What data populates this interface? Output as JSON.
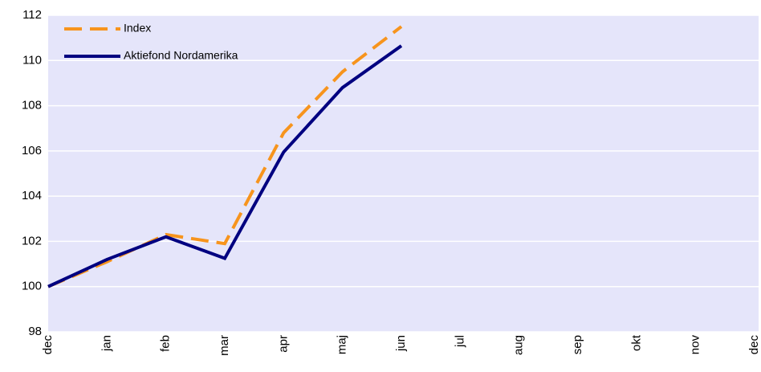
{
  "chart_data": {
    "type": "line",
    "categories": [
      "dec",
      "jan",
      "feb",
      "mar",
      "apr",
      "maj",
      "jun",
      "jul",
      "aug",
      "sep",
      "okt",
      "nov",
      "dec"
    ],
    "series": [
      {
        "name": "Index",
        "color": "#f7941d",
        "dashed": true,
        "values": [
          100,
          101.1,
          102.3,
          101.9,
          106.8,
          109.5,
          111.5,
          null,
          null,
          null,
          null,
          null,
          null
        ]
      },
      {
        "name": "Aktiefond Nordamerika",
        "color": "#000080",
        "dashed": false,
        "values": [
          100,
          101.2,
          102.2,
          101.25,
          105.95,
          108.8,
          110.65,
          null,
          null,
          null,
          null,
          null,
          null
        ]
      }
    ],
    "ylim": [
      98,
      112
    ],
    "yticks": [
      98,
      100,
      102,
      104,
      106,
      108,
      110,
      112
    ],
    "grid": true,
    "legend": "top-left"
  }
}
